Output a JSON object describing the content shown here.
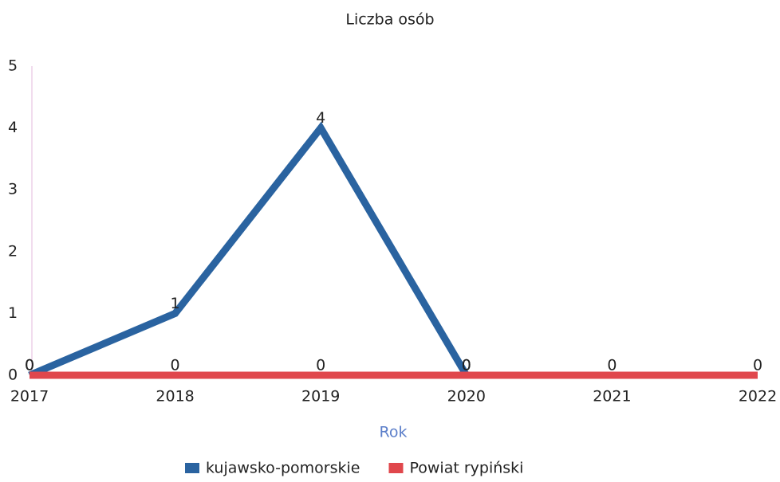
{
  "chart_data": {
    "type": "line",
    "title": "Liczba osób",
    "x_label": "Rok",
    "x": [
      2017,
      2018,
      2019,
      2020,
      2021,
      2022
    ],
    "xlim": [
      2017,
      2022
    ],
    "xticks": [
      2017,
      2018,
      2019,
      2020,
      2021,
      2022
    ],
    "ylim": [
      0,
      5
    ],
    "yticks": [
      0,
      1,
      2,
      3,
      4,
      5
    ],
    "series": [
      {
        "name": "kujawsko-pomorskie",
        "color": "#2a63a0",
        "values": [
          0,
          1,
          4,
          0,
          null,
          null
        ]
      },
      {
        "name": "Powiat rypiński",
        "color": "#e0474c",
        "values": [
          0,
          0,
          0,
          0,
          0,
          0
        ]
      }
    ]
  }
}
